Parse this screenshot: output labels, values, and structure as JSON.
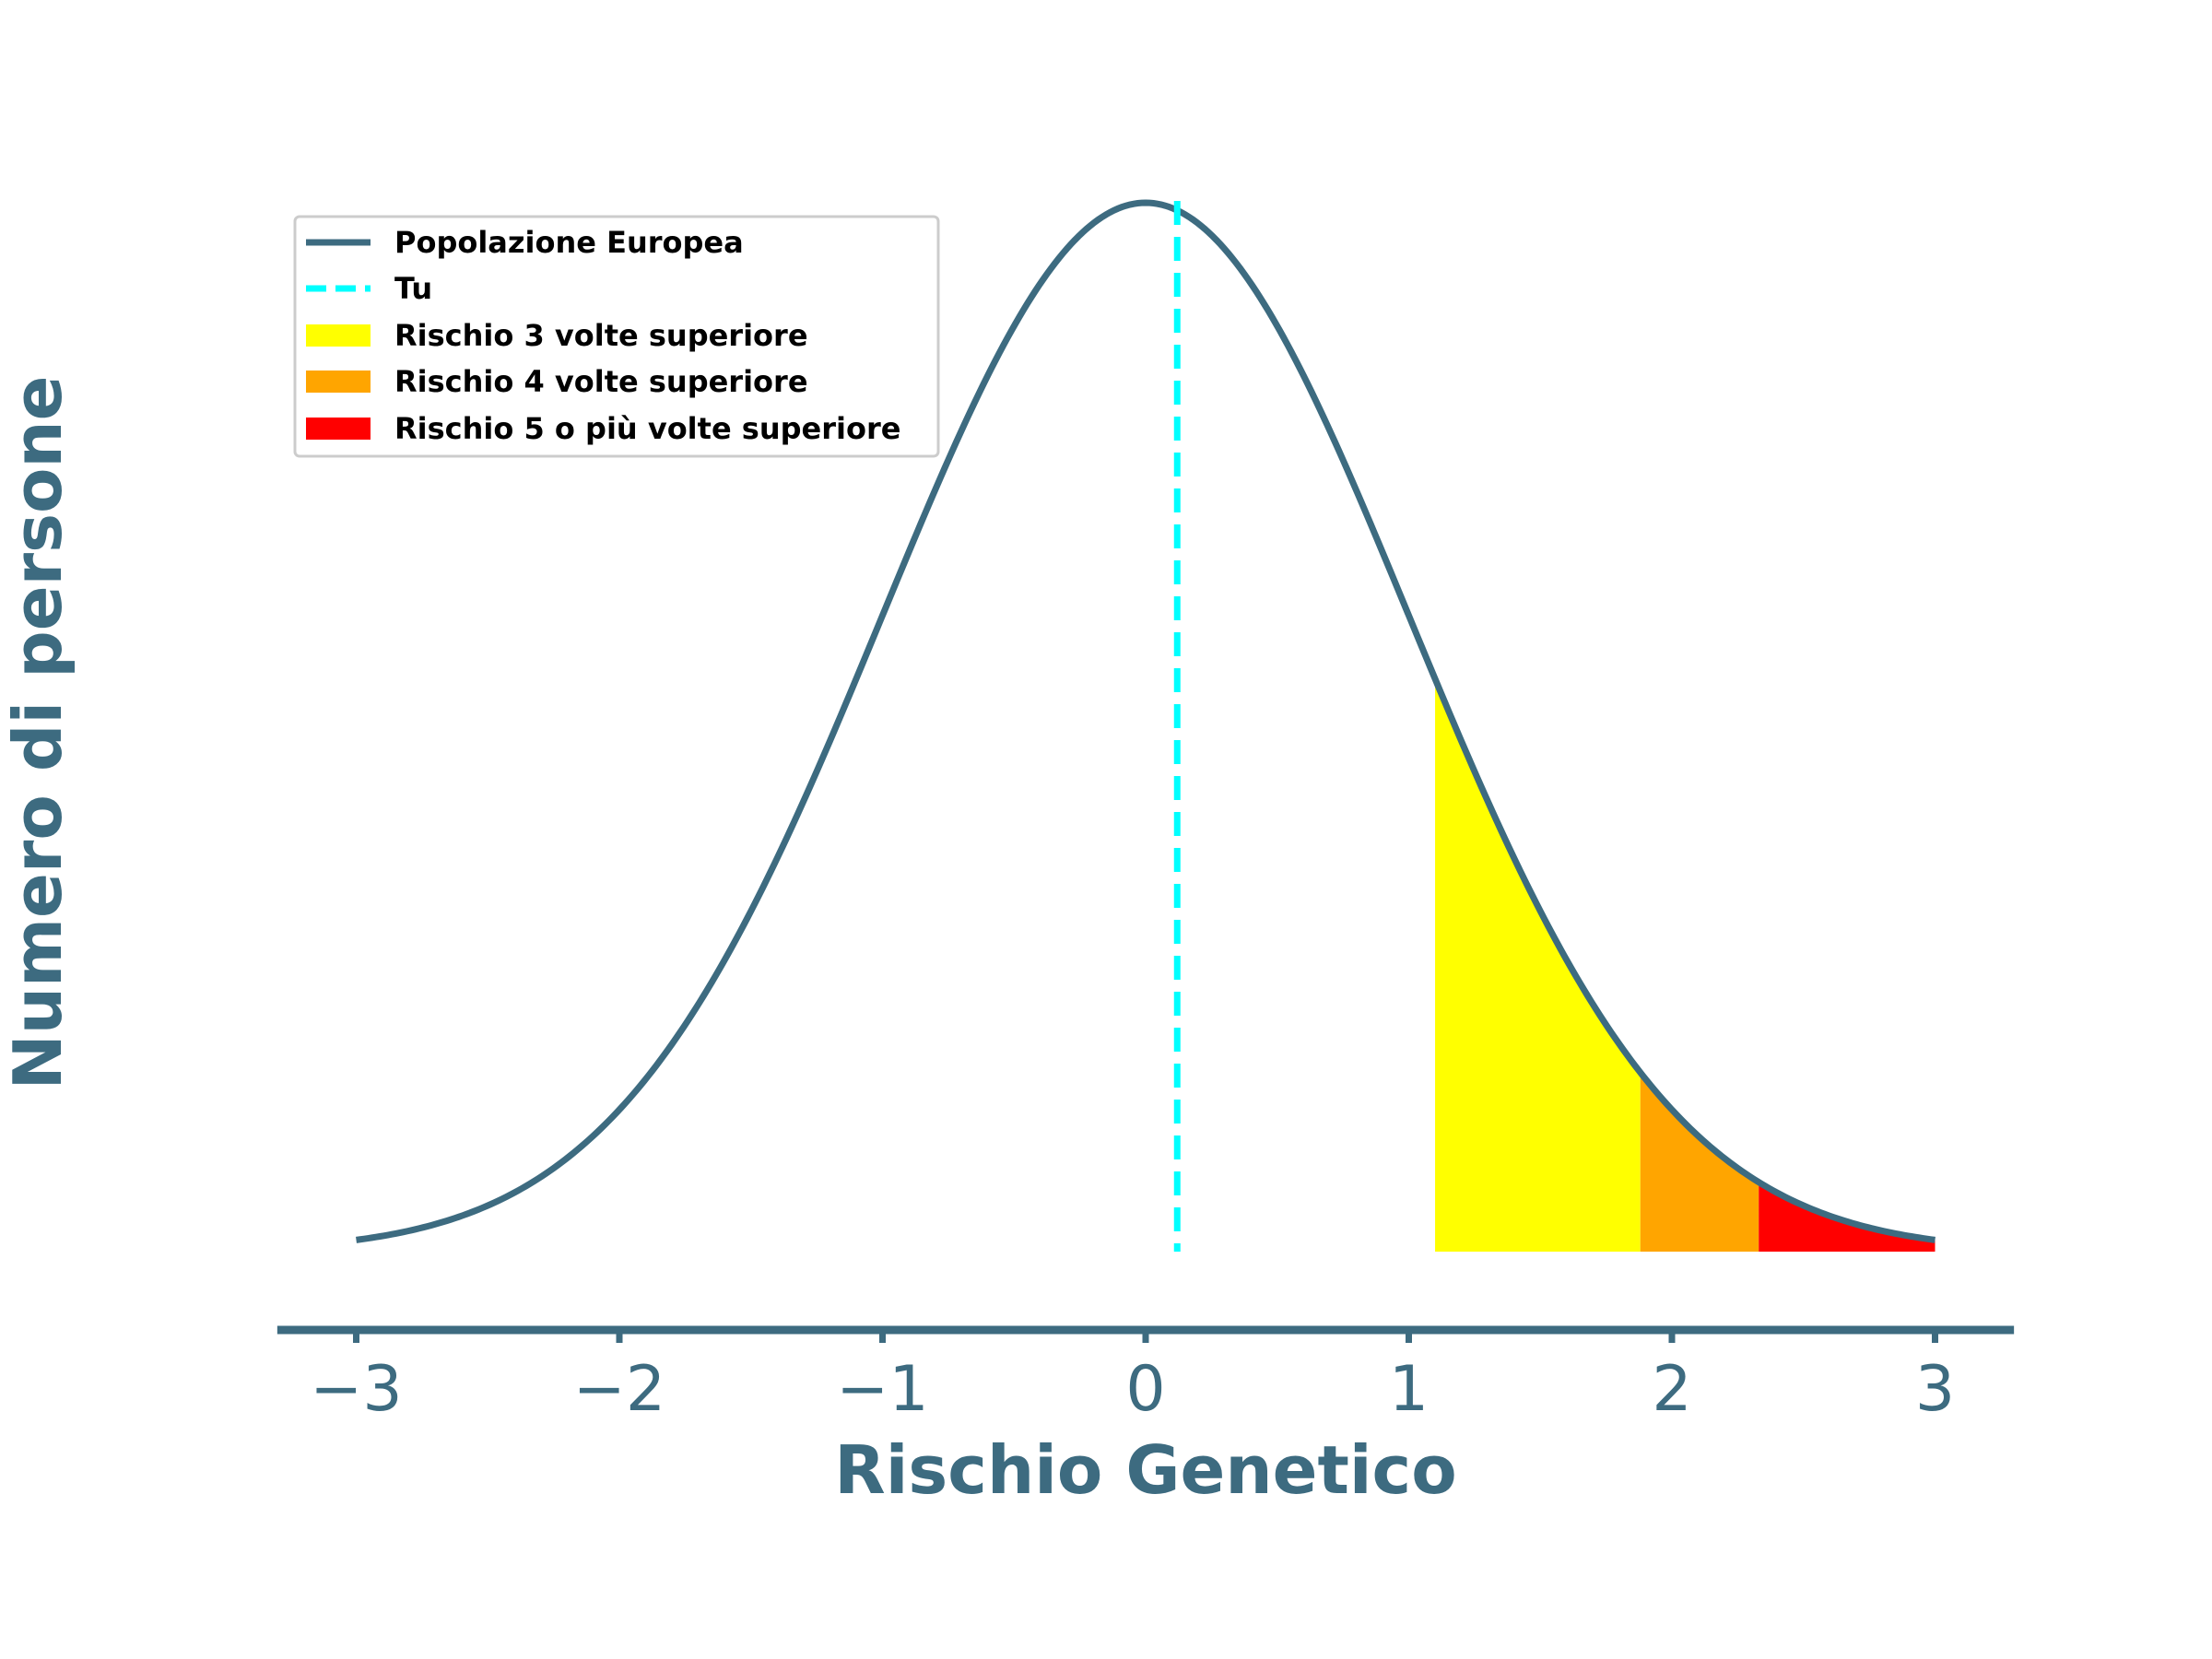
{
  "chart_data": {
    "type": "area",
    "xlabel": "Rischio Genetico",
    "ylabel": "Numero di persone",
    "xlim": [
      -3.3,
      3.3
    ],
    "xticks": [
      -3,
      -2,
      -1,
      0,
      1,
      2,
      3
    ],
    "xtick_labels": [
      "−3",
      "−2",
      "−1",
      "0",
      "1",
      "2",
      "3"
    ],
    "grid": false,
    "legend_position": "top-left",
    "y_ticks_visible": false,
    "series": [
      {
        "name": "Popolazione Europea",
        "kind": "line",
        "distribution": "standard normal density",
        "x_range": [
          -3,
          3
        ]
      },
      {
        "name": "Tu",
        "kind": "vertical-dashed-line",
        "x": 0.12
      }
    ],
    "shaded_regions": [
      {
        "name": "Rischio 3 volte superiore",
        "x_start": 1.1,
        "x_end": 1.88,
        "color": "#ffff00"
      },
      {
        "name": "Rischio 4 volte superiore",
        "x_start": 1.88,
        "x_end": 2.33,
        "color": "#ffa500"
      },
      {
        "name": "Rischio 5 o più volte superiore",
        "x_start": 2.33,
        "x_end": 3.0,
        "color": "#ff0000"
      }
    ],
    "legend": [
      "Popolazione Europea",
      "Tu",
      "Rischio 3 volte superiore",
      "Rischio 4 volte superiore",
      "Rischio 5 o più volte superiore"
    ]
  },
  "colors": {
    "curve": "#3d6b80",
    "you_line": "#00ffff",
    "axis": "#3d6b80",
    "text": "#3d6b80",
    "legend_border": "#cccccc"
  }
}
